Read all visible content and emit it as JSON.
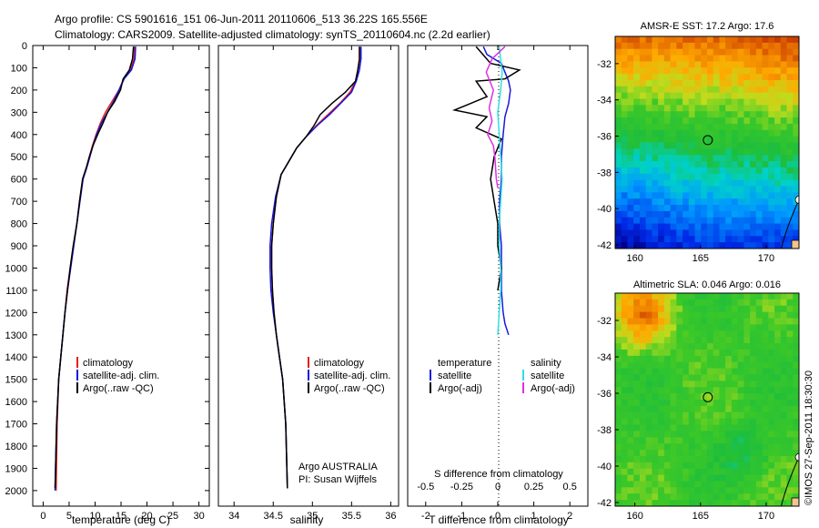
{
  "header": {
    "line1": "Argo profile: CS 5901616_151 06-Jun-2011 20110606_513 36.22S 165.556E",
    "line2": "Climatology: CARS2009. Satellite-adjusted climatology: synTS_20110604.nc (2.2d earlier)"
  },
  "colors": {
    "climatology": "#e0201c",
    "satellite": "#1818e0",
    "argo": "#000000",
    "sat_salinity": "#30e0e0",
    "argo_salinity": "#e030e0"
  },
  "chart_data": [
    {
      "type": "line",
      "name": "temperature-profile",
      "xlabel": "temperature (deg C)",
      "xlim": [
        -2,
        32
      ],
      "ylim": [
        2070,
        0
      ],
      "xticks": [
        "0",
        "5",
        "10",
        "15",
        "20",
        "25",
        "30"
      ],
      "yticks": [
        "0",
        "100",
        "200",
        "300",
        "400",
        "500",
        "600",
        "700",
        "800",
        "900",
        "1000",
        "1100",
        "1200",
        "1300",
        "1400",
        "1500",
        "1600",
        "1700",
        "1800",
        "1900",
        "2000"
      ],
      "legend": [
        "climatology",
        "satellite-adj. clim.",
        "Argo(..raw -QC)"
      ],
      "series": [
        {
          "name": "climatology",
          "color": "climatology",
          "x": [
            17.6,
            17.5,
            16.8,
            15.5,
            14.6,
            13.3,
            12.0,
            11.0,
            10.2,
            9.5,
            8.9,
            8.3,
            7.6,
            7.0,
            6.5,
            5.8,
            5.2,
            4.6,
            4.2,
            3.8,
            3.4,
            3.0,
            2.7,
            2.5
          ],
          "y": [
            5,
            60,
            110,
            150,
            200,
            250,
            300,
            350,
            400,
            450,
            500,
            550,
            600,
            700,
            800,
            900,
            1000,
            1100,
            1200,
            1300,
            1400,
            1500,
            1700,
            2000
          ]
        },
        {
          "name": "satellite-adj. clim.",
          "color": "satellite",
          "x": [
            17.8,
            17.7,
            17.0,
            15.6,
            14.6,
            13.6,
            12.4,
            11.2,
            10.3,
            9.6,
            9.0,
            8.4,
            7.7,
            7.1,
            6.5,
            5.9,
            5.3,
            4.7,
            4.2,
            3.8,
            3.4,
            3.0,
            2.6,
            2.3
          ],
          "y": [
            5,
            60,
            110,
            150,
            200,
            250,
            300,
            350,
            400,
            450,
            500,
            550,
            600,
            700,
            800,
            900,
            1000,
            1100,
            1200,
            1300,
            1400,
            1500,
            1700,
            2000
          ]
        },
        {
          "name": "Argo(..raw -QC)",
          "color": "argo",
          "x": [
            17.4,
            17.2,
            16.6,
            15.4,
            14.9,
            13.8,
            12.4,
            11.5,
            10.5,
            9.6,
            8.9,
            8.3,
            7.6,
            7.0,
            6.5,
            5.8,
            5.2,
            4.7,
            4.2,
            3.8,
            3.4,
            3.0,
            2.6,
            2.3
          ],
          "y": [
            5,
            60,
            110,
            150,
            200,
            250,
            300,
            350,
            400,
            450,
            500,
            550,
            600,
            700,
            800,
            900,
            1000,
            1100,
            1200,
            1300,
            1400,
            1500,
            1700,
            1990
          ]
        }
      ]
    },
    {
      "type": "line",
      "name": "salinity-profile",
      "xlabel": "salinity",
      "xlim": [
        33.8,
        36.1
      ],
      "ylim": [
        2070,
        0
      ],
      "xticks": [
        "34",
        "34.5",
        "35",
        "35.5",
        "36"
      ],
      "legend": [
        "climatology",
        "satellite-adj. clim.",
        "Argo(..raw -QC)"
      ],
      "annotation": [
        "Argo AUSTRALIA",
        "PI: Susan Wijffels"
      ],
      "series": [
        {
          "name": "climatology",
          "color": "climatology",
          "x": [
            35.6,
            35.6,
            35.58,
            35.55,
            35.48,
            35.35,
            35.2,
            35.05,
            34.92,
            34.8,
            34.7,
            34.6,
            34.54,
            34.5,
            34.48,
            34.48,
            34.49,
            34.51,
            34.54,
            34.58,
            34.62,
            34.66,
            34.68
          ],
          "y": [
            5,
            60,
            110,
            160,
            210,
            260,
            310,
            360,
            410,
            460,
            520,
            580,
            680,
            800,
            900,
            1000,
            1100,
            1200,
            1300,
            1400,
            1500,
            1700,
            1990
          ]
        },
        {
          "name": "satellite-adj. clim.",
          "color": "satellite",
          "x": [
            35.62,
            35.62,
            35.6,
            35.56,
            35.5,
            35.36,
            35.22,
            35.06,
            34.92,
            34.8,
            34.7,
            34.6,
            34.53,
            34.48,
            34.46,
            34.46,
            34.47,
            34.5,
            34.54,
            34.58,
            34.62,
            34.66,
            34.68
          ],
          "y": [
            5,
            60,
            110,
            160,
            210,
            260,
            310,
            360,
            410,
            460,
            520,
            580,
            680,
            800,
            900,
            1000,
            1100,
            1200,
            1300,
            1400,
            1500,
            1700,
            1990
          ]
        },
        {
          "name": "Argo(..raw -QC)",
          "color": "argo",
          "x": [
            35.6,
            35.6,
            35.58,
            35.55,
            35.42,
            35.25,
            35.1,
            35.02,
            34.92,
            34.8,
            34.7,
            34.6,
            34.54,
            34.5,
            34.48,
            34.48,
            34.49,
            34.51,
            34.54,
            34.58,
            34.62,
            34.66,
            34.68
          ],
          "y": [
            5,
            60,
            110,
            160,
            210,
            260,
            310,
            360,
            410,
            460,
            520,
            580,
            680,
            800,
            900,
            1000,
            1100,
            1200,
            1300,
            1400,
            1500,
            1700,
            1990
          ]
        }
      ]
    },
    {
      "type": "line",
      "name": "difference-profile",
      "xlabel": "T difference from climatology",
      "top_xlabel": "S difference from climatology",
      "xlim": [
        -2.5,
        2.5
      ],
      "ylim": [
        2070,
        0
      ],
      "xticks_t": [
        "-2",
        "-1",
        "0",
        "1",
        "2"
      ],
      "xticks_s": [
        "-0.5",
        "-0.25",
        "0",
        "0.25",
        "0.5"
      ],
      "legend_headers": [
        "temperature",
        "salinity"
      ],
      "legend_t": [
        "satellite",
        "Argo(-adj)"
      ],
      "legend_s": [
        "satellite",
        "Argo(-adj)"
      ],
      "series": [
        {
          "name": "T satellite",
          "color": "satellite",
          "x": [
            -0.4,
            -0.3,
            0.1,
            0.2,
            0.3,
            0.35,
            0.3,
            0.2,
            0.15,
            0.1,
            0.1,
            0.05,
            0.05,
            0.1,
            0.1,
            0.1,
            0.15,
            0.2,
            0.3
          ],
          "y": [
            5,
            40,
            80,
            120,
            160,
            200,
            260,
            320,
            400,
            500,
            600,
            700,
            800,
            900,
            1000,
            1100,
            1200,
            1250,
            1300
          ]
        },
        {
          "name": "T Argo(-adj)",
          "color": "argo",
          "x": [
            -0.6,
            -0.2,
            0.6,
            0.2,
            -0.6,
            -0.3,
            -1.2,
            -0.3,
            -0.6,
            0.1,
            -0.1,
            -0.2,
            -0.1,
            0.0,
            0.0,
            0.1,
            0.0
          ],
          "y": [
            5,
            80,
            110,
            150,
            160,
            230,
            290,
            320,
            370,
            420,
            500,
            600,
            700,
            800,
            900,
            1000,
            1100
          ]
        },
        {
          "name": "S satellite",
          "color": "sat_salinity",
          "x": [
            0.01,
            0.02,
            0.03,
            0.02,
            0.0,
            0.01,
            0.02,
            0.03,
            0.02,
            0.01,
            0.01,
            0.02,
            0.02,
            0.01,
            0.0
          ],
          "y": [
            5,
            60,
            120,
            200,
            300,
            400,
            500,
            600,
            700,
            800,
            900,
            1000,
            1100,
            1200,
            1300
          ]
        },
        {
          "name": "S Argo(-adj)",
          "color": "argo_salinity",
          "x": [
            0.05,
            -0.04,
            -0.08,
            -0.03,
            -0.06,
            -0.04,
            -0.07,
            -0.03,
            -0.02,
            -0.01,
            0.0
          ],
          "y": [
            5,
            60,
            120,
            200,
            280,
            340,
            400,
            450,
            500,
            600,
            640
          ]
        }
      ]
    },
    {
      "type": "heatmap",
      "name": "sst-map",
      "title": "AMSR-E SST: 17.2 Argo: 17.6",
      "xticks": [
        "160",
        "165",
        "170"
      ],
      "yticks": [
        "-32",
        "-34",
        "-36",
        "-38",
        "-40",
        "-42"
      ],
      "xlim": [
        158.5,
        172.5
      ],
      "ylim": [
        -42.2,
        -30.5
      ],
      "marker": {
        "lon": 165.556,
        "lat": -36.22
      }
    },
    {
      "type": "heatmap",
      "name": "sla-map",
      "title": "Altimetric SLA: 0.046 Argo: 0.016",
      "xticks": [
        "160",
        "165",
        "170"
      ],
      "yticks": [
        "-32",
        "-34",
        "-36",
        "-38",
        "-40",
        "-42"
      ],
      "xlim": [
        158.5,
        172.5
      ],
      "ylim": [
        -42.2,
        -30.5
      ],
      "marker": {
        "lon": 165.556,
        "lat": -36.22
      }
    }
  ],
  "stamp": "©IMOS 27-Sep-2011 18:30:30"
}
